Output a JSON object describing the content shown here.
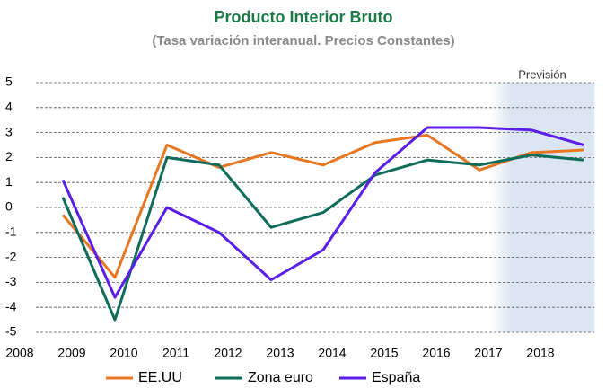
{
  "chart_data": {
    "type": "line",
    "title": "Producto Interior Bruto",
    "subtitle": "(Tasa variación interanual. Precios Constantes)",
    "annotation": "Previsión",
    "categories": [
      "2008",
      "2009",
      "2010",
      "2011",
      "2012",
      "2013",
      "2014",
      "2015",
      "2016",
      "2017",
      "2018"
    ],
    "series": [
      {
        "name": "EE.UU",
        "color": "#e87722",
        "values": [
          -0.3,
          -2.8,
          2.5,
          1.6,
          2.2,
          1.7,
          2.6,
          2.9,
          1.5,
          2.2,
          2.3
        ]
      },
      {
        "name": "Zona euro",
        "color": "#0f6b5a",
        "values": [
          0.4,
          -4.5,
          2.0,
          1.7,
          -0.8,
          -0.2,
          1.3,
          1.9,
          1.7,
          2.1,
          1.9
        ]
      },
      {
        "name": "España",
        "color": "#5a1ee8",
        "values": [
          1.1,
          -3.6,
          0.0,
          -1.0,
          -2.9,
          -1.7,
          1.4,
          3.2,
          3.2,
          3.1,
          2.5
        ]
      }
    ],
    "ylim": [
      -5,
      5
    ],
    "yticks": [
      -5,
      -4,
      -3,
      -2,
      -1,
      0,
      1,
      2,
      3,
      4,
      5
    ],
    "grid": true,
    "legend": "bottom"
  }
}
